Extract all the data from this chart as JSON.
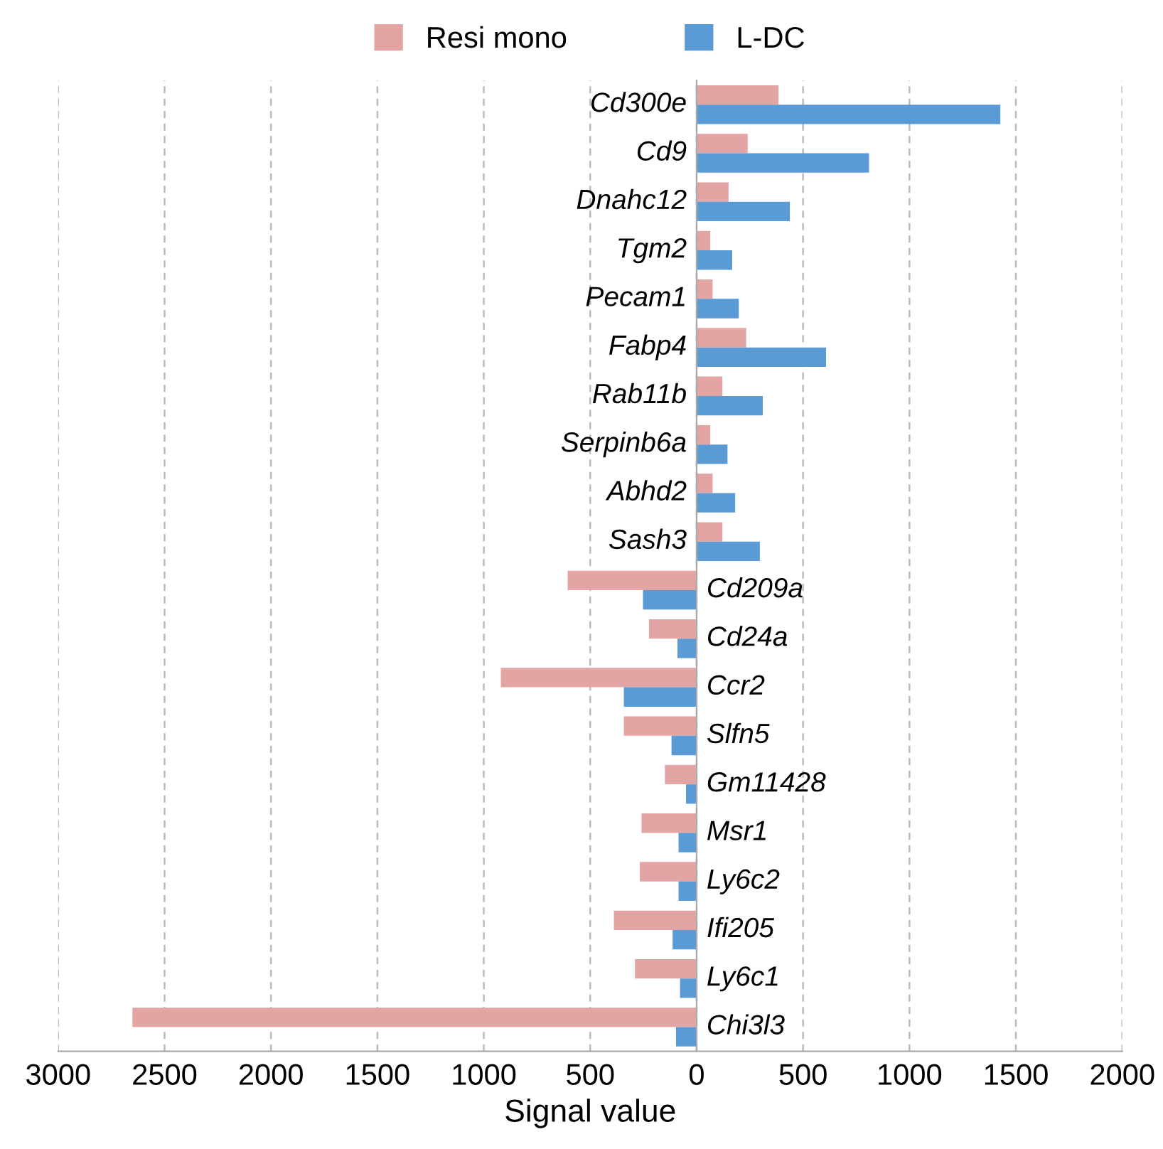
{
  "chart_data": {
    "type": "bar",
    "orientation": "horizontal",
    "xlabel": "Signal value",
    "categories": [
      "Cd300e",
      "Cd9",
      "Dnahc12",
      "Tgm2",
      "Pecam1",
      "Fabp4",
      "Rab11b",
      "Serpinb6a",
      "Abhd2",
      "Sash3",
      "Cd209a",
      "Cd24a",
      "Ccr2",
      "Slfn5",
      "Gm11428",
      "Msr1",
      "Ly6c2",
      "Ifi205",
      "Ly6c1",
      "Chi3l3"
    ],
    "series": [
      {
        "name": "Resi mono",
        "color": "#e3a5a3",
        "values": [
          385,
          240,
          150,
          64,
          75,
          233,
          121,
          64,
          75,
          121,
          -606,
          -224,
          -920,
          -342,
          -149,
          -259,
          -267,
          -389,
          -290,
          -2651
        ]
      },
      {
        "name": "L-DC",
        "color": "#5b9bd5",
        "values": [
          1427,
          810,
          438,
          167,
          198,
          608,
          311,
          145,
          181,
          297,
          -252,
          -90,
          -342,
          -118,
          -50,
          -85,
          -85,
          -113,
          -78,
          -97
        ]
      }
    ],
    "xlim": [
      -3000,
      2000
    ],
    "xticks": [
      {
        "value": -3000,
        "label": "3000"
      },
      {
        "value": -2500,
        "label": "2500"
      },
      {
        "value": -2000,
        "label": "2000"
      },
      {
        "value": -1500,
        "label": "1500"
      },
      {
        "value": -1000,
        "label": "1000"
      },
      {
        "value": -500,
        "label": "500"
      },
      0,
      500,
      1000,
      1500,
      2000
    ],
    "grid": "x",
    "legend": "top"
  }
}
